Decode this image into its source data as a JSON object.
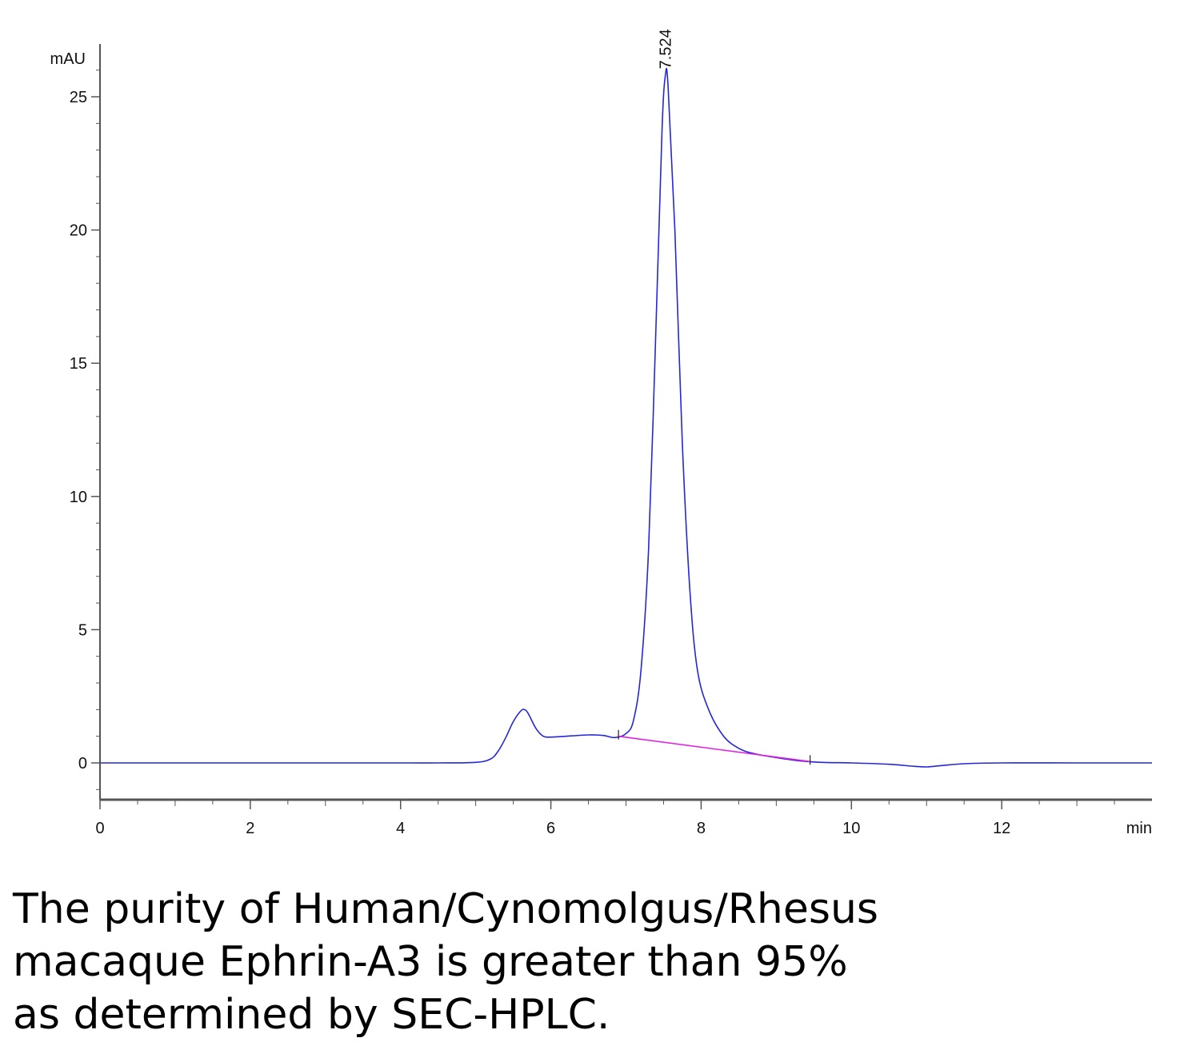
{
  "chart_data": {
    "type": "line",
    "title": "",
    "xlabel": "min",
    "ylabel": "mAU",
    "xlim": [
      0,
      14
    ],
    "ylim": [
      -1.4,
      27
    ],
    "x_ticks": [
      0,
      2,
      4,
      6,
      8,
      10,
      12
    ],
    "x_tick_labels": [
      "0",
      "2",
      "4",
      "6",
      "8",
      "10",
      "12"
    ],
    "y_ticks": [
      0,
      5,
      10,
      15,
      20,
      25
    ],
    "y_tick_labels": [
      "0",
      "5",
      "10",
      "15",
      "20",
      "25"
    ],
    "grid": false,
    "colors": {
      "trace": "#2626d6",
      "baseline": "#e020e0",
      "axis": "#555555"
    },
    "series": [
      {
        "role": "signal",
        "x": [
          0,
          1,
          2,
          3,
          4,
          4.5,
          5.0,
          5.2,
          5.3,
          5.4,
          5.5,
          5.6,
          5.65,
          5.7,
          5.8,
          5.9,
          6.0,
          6.2,
          6.5,
          6.7,
          6.85,
          7.0,
          7.1,
          7.2,
          7.3,
          7.4,
          7.48,
          7.524,
          7.56,
          7.65,
          7.75,
          7.85,
          7.95,
          8.1,
          8.3,
          8.5,
          8.7,
          9.0,
          9.3,
          9.6,
          10.0,
          10.5,
          10.8,
          11.0,
          11.2,
          11.5,
          12.0,
          13.0,
          14.0
        ],
        "y": [
          0,
          0,
          0,
          0,
          0,
          0,
          0.02,
          0.15,
          0.45,
          0.95,
          1.55,
          1.95,
          2.0,
          1.85,
          1.3,
          1.0,
          0.97,
          1.0,
          1.05,
          1.03,
          0.95,
          1.1,
          1.6,
          3.5,
          8.0,
          16.5,
          23.8,
          25.8,
          25.4,
          20.0,
          12.0,
          6.5,
          3.5,
          2.0,
          1.0,
          0.55,
          0.35,
          0.2,
          0.08,
          0.02,
          0,
          -0.05,
          -0.12,
          -0.15,
          -0.1,
          -0.03,
          0,
          0,
          0
        ]
      },
      {
        "role": "integration-baseline",
        "x": [
          6.9,
          9.45
        ],
        "y": [
          1.0,
          0.05
        ]
      }
    ],
    "annotations": [
      {
        "text": "7.524",
        "x": 7.524,
        "y": 25.8,
        "orientation": "vertical"
      }
    ],
    "markers": [
      {
        "x": 6.9,
        "y": 1.0
      },
      {
        "x": 9.45,
        "y": 0.05
      }
    ]
  },
  "caption": {
    "lines": [
      "The purity of Human/Cynomolgus/Rhesus",
      "macaque Ephrin-A3 is greater than 95%",
      "as determined by SEC-HPLC."
    ]
  }
}
